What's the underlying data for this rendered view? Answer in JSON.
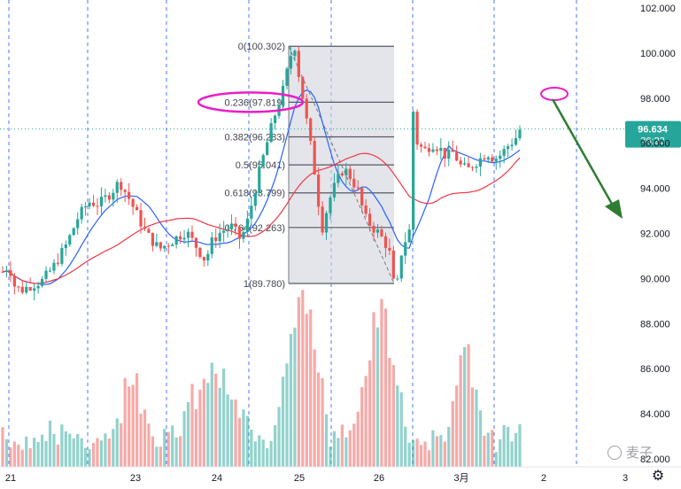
{
  "chart_data": {
    "type": "candlestick",
    "y_axis": {
      "ticks": [
        "102.000",
        "100.000",
        "98.000",
        "96.000",
        "94.000",
        "92.000",
        "90.000",
        "88.000",
        "86.000",
        "84.000",
        "82.000"
      ],
      "ylim": [
        82.0,
        102.0
      ],
      "position": "right"
    },
    "x_axis": {
      "ticks": [
        "21",
        "23",
        "24",
        "25",
        "26",
        "3月",
        "2",
        "3"
      ]
    },
    "current_price": {
      "value": "96.634",
      "countdown": "36:23",
      "color": "#26a69a"
    },
    "fibonacci": [
      {
        "label": "0(100.302)",
        "value": 100.302
      },
      {
        "label": "0.236(97.819)",
        "value": 97.819
      },
      {
        "label": "0.382(96.283)",
        "value": 96.283
      },
      {
        "label": "0.5(95.041)",
        "value": 95.041
      },
      {
        "label": "0.618(93.799)",
        "value": 93.799
      },
      {
        "label": "0.764(92.263)",
        "value": 92.263
      },
      {
        "label": "1(89.780)",
        "value": 89.78
      }
    ],
    "colors": {
      "up": "#26a69a",
      "down": "#ef5350",
      "ma_fast": "#2962ff",
      "ma_slow": "#f23645",
      "fib_box": "#d1d4dc",
      "annotation_ellipse": "#e91ec8",
      "arrow": "#2e7d32",
      "grid_dashed": "#2962ff"
    },
    "series": [
      {
        "kind": "candles",
        "count": 132,
        "price_range": [
          89.78,
          100.302
        ]
      },
      {
        "kind": "moving_average_fast"
      },
      {
        "kind": "moving_average_slow"
      },
      {
        "kind": "volume"
      }
    ],
    "annotations": [
      "ellipse-on-0.236-level",
      "ellipse-future",
      "downward-arrow"
    ]
  },
  "watermark": {
    "text": "麦子"
  },
  "settings_icon": "gear-icon"
}
